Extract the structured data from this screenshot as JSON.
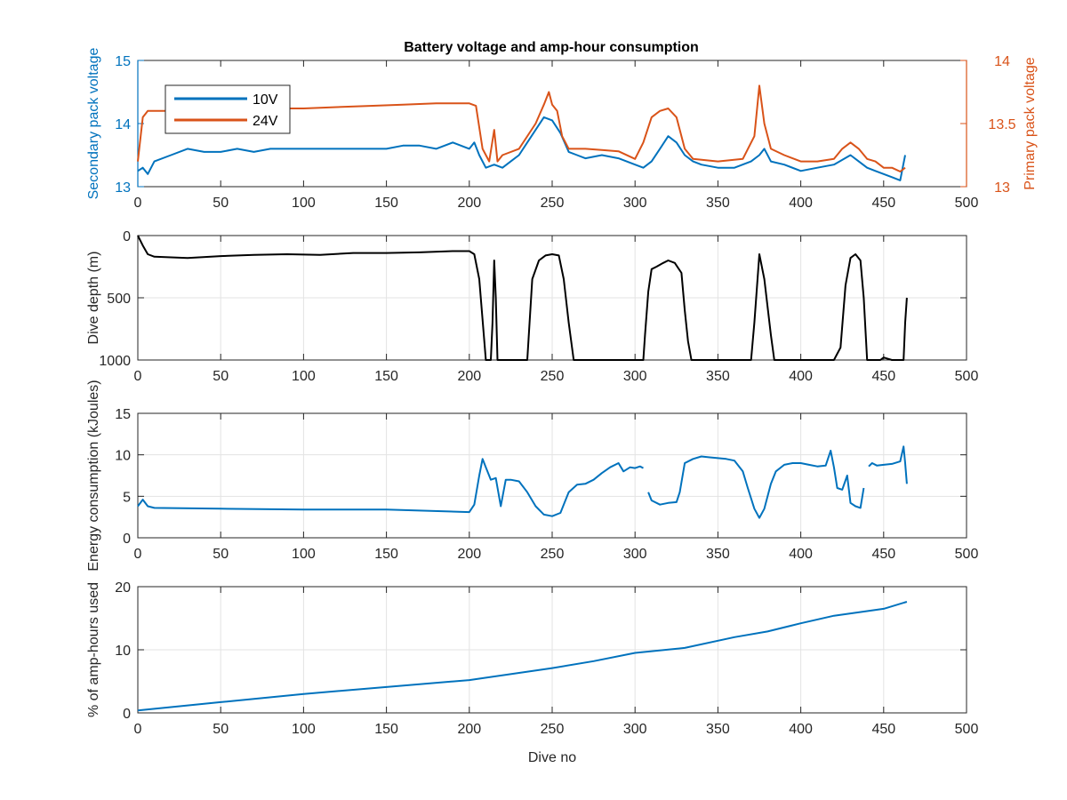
{
  "figure": {
    "title": "Battery voltage and amp-hour consumption"
  },
  "chart_data": [
    {
      "type": "line",
      "title": "Battery voltage and amp-hour consumption",
      "xlabel": "",
      "ylabel": "Secondary pack voltage",
      "y2label": "Primary pack voltage",
      "xlim": [
        0,
        500
      ],
      "ylim": [
        13,
        15
      ],
      "y2lim": [
        13,
        14
      ],
      "xticks": [
        "0",
        "50",
        "100",
        "150",
        "200",
        "250",
        "300",
        "350",
        "400",
        "450",
        "500"
      ],
      "yticks": [
        "13",
        "14",
        "15"
      ],
      "y2ticks": [
        "13",
        "13.5",
        "14"
      ],
      "grid": false,
      "legend": "top-left",
      "series": [
        {
          "name": "10V",
          "axis": "left",
          "color": "#0072BD",
          "x": [
            0,
            3,
            6,
            10,
            20,
            30,
            40,
            50,
            60,
            70,
            80,
            90,
            100,
            110,
            120,
            130,
            140,
            150,
            160,
            170,
            180,
            190,
            200,
            203,
            206,
            210,
            215,
            220,
            225,
            230,
            235,
            240,
            245,
            250,
            255,
            260,
            265,
            270,
            280,
            290,
            300,
            305,
            310,
            315,
            320,
            325,
            330,
            335,
            340,
            350,
            360,
            370,
            375,
            378,
            382,
            390,
            400,
            410,
            420,
            430,
            435,
            440,
            445,
            450,
            455,
            460,
            463
          ],
          "values": [
            13.25,
            13.3,
            13.2,
            13.4,
            13.5,
            13.6,
            13.55,
            13.55,
            13.6,
            13.55,
            13.6,
            13.6,
            13.6,
            13.6,
            13.6,
            13.6,
            13.6,
            13.6,
            13.65,
            13.65,
            13.6,
            13.7,
            13.6,
            13.7,
            13.5,
            13.3,
            13.35,
            13.3,
            13.4,
            13.5,
            13.7,
            13.9,
            14.1,
            14.05,
            13.85,
            13.55,
            13.5,
            13.45,
            13.5,
            13.45,
            13.35,
            13.3,
            13.4,
            13.6,
            13.8,
            13.7,
            13.5,
            13.4,
            13.35,
            13.3,
            13.3,
            13.4,
            13.5,
            13.6,
            13.4,
            13.35,
            13.25,
            13.3,
            13.35,
            13.5,
            13.4,
            13.3,
            13.25,
            13.2,
            13.15,
            13.1,
            13.5
          ]
        },
        {
          "name": "24V",
          "axis": "right",
          "color": "#D95319",
          "x": [
            0,
            3,
            6,
            10,
            20,
            40,
            60,
            80,
            100,
            120,
            140,
            160,
            180,
            200,
            204,
            208,
            212,
            215,
            217,
            220,
            230,
            240,
            245,
            248,
            250,
            253,
            256,
            260,
            270,
            280,
            290,
            300,
            305,
            310,
            315,
            320,
            325,
            330,
            335,
            350,
            365,
            372,
            375,
            378,
            382,
            390,
            400,
            410,
            420,
            425,
            430,
            435,
            440,
            445,
            450,
            455,
            460,
            463
          ],
          "values": [
            13.2,
            13.55,
            13.6,
            13.6,
            13.6,
            13.6,
            13.61,
            13.62,
            13.62,
            13.63,
            13.64,
            13.65,
            13.66,
            13.66,
            13.64,
            13.3,
            13.2,
            13.45,
            13.2,
            13.25,
            13.3,
            13.5,
            13.65,
            13.75,
            13.65,
            13.6,
            13.4,
            13.3,
            13.3,
            13.29,
            13.28,
            13.22,
            13.35,
            13.55,
            13.6,
            13.62,
            13.55,
            13.3,
            13.22,
            13.2,
            13.22,
            13.4,
            13.8,
            13.5,
            13.3,
            13.25,
            13.2,
            13.2,
            13.22,
            13.3,
            13.35,
            13.3,
            13.22,
            13.2,
            13.15,
            13.15,
            13.12,
            13.15
          ]
        }
      ]
    },
    {
      "type": "line",
      "title": "",
      "xlabel": "",
      "ylabel": "Dive depth (m)",
      "xlim": [
        0,
        500
      ],
      "ylim": [
        0,
        1000
      ],
      "y_reversed": true,
      "xticks": [
        "0",
        "50",
        "100",
        "150",
        "200",
        "250",
        "300",
        "350",
        "400",
        "450",
        "500"
      ],
      "yticks": [
        "0",
        "500",
        "1000"
      ],
      "grid": true,
      "series": [
        {
          "color": "#000000",
          "x": [
            0,
            3,
            6,
            10,
            30,
            50,
            70,
            90,
            110,
            130,
            150,
            170,
            190,
            200,
            203,
            206,
            210,
            212,
            213,
            214,
            215,
            216,
            217,
            218,
            220,
            225,
            235,
            238,
            242,
            246,
            250,
            254,
            257,
            260,
            263,
            270,
            280,
            290,
            300,
            305,
            306,
            308,
            310,
            313,
            317,
            320,
            324,
            328,
            330,
            332,
            334,
            340,
            360,
            370,
            372,
            375,
            378,
            382,
            384,
            390,
            400,
            410,
            420,
            424,
            427,
            430,
            433,
            436,
            438,
            440,
            445,
            448,
            450,
            455,
            460,
            462,
            463,
            464
          ],
          "values": [
            0,
            80,
            150,
            170,
            180,
            165,
            155,
            150,
            155,
            140,
            140,
            135,
            125,
            125,
            150,
            350,
            1000,
            1000,
            1000,
            700,
            200,
            500,
            1000,
            1000,
            1000,
            1000,
            1000,
            350,
            200,
            160,
            150,
            160,
            350,
            700,
            1000,
            1000,
            1000,
            1000,
            1000,
            1000,
            800,
            450,
            270,
            250,
            220,
            200,
            220,
            300,
            600,
            850,
            1000,
            1000,
            1000,
            1000,
            700,
            150,
            350,
            800,
            1000,
            1000,
            1000,
            1000,
            1000,
            900,
            400,
            180,
            150,
            200,
            500,
            1000,
            1000,
            1000,
            980,
            1000,
            1000,
            1000,
            700,
            500
          ]
        }
      ]
    },
    {
      "type": "line",
      "title": "",
      "xlabel": "",
      "ylabel": "Energy consumption (kJoules)",
      "xlim": [
        0,
        500
      ],
      "ylim": [
        0,
        15
      ],
      "xticks": [
        "0",
        "50",
        "100",
        "150",
        "200",
        "250",
        "300",
        "350",
        "400",
        "450",
        "500"
      ],
      "yticks": [
        "0",
        "5",
        "10",
        "15"
      ],
      "grid": true,
      "series": [
        {
          "color": "#0072BD",
          "x": [
            0,
            3,
            6,
            10,
            50,
            100,
            150,
            200,
            203,
            206,
            208,
            210,
            213,
            216,
            219,
            222,
            225,
            230,
            235,
            240,
            245,
            250,
            255,
            260,
            265,
            270,
            275,
            280,
            285,
            290,
            293,
            297,
            300,
            303,
            305
          ],
          "values": [
            3.8,
            4.6,
            3.8,
            3.6,
            3.5,
            3.4,
            3.4,
            3.1,
            4.0,
            7.5,
            9.5,
            8.5,
            7.0,
            7.2,
            3.8,
            7.0,
            7.0,
            6.8,
            5.5,
            3.8,
            2.8,
            2.6,
            3.0,
            5.5,
            6.4,
            6.5,
            7.0,
            7.8,
            8.5,
            9.0,
            8.0,
            8.5,
            8.4,
            8.6,
            8.4
          ]
        },
        {
          "color": "#0072BD",
          "x": [
            308,
            310,
            315,
            320,
            325,
            327,
            330,
            335,
            340,
            345,
            350,
            355,
            360,
            365,
            368,
            372,
            375,
            378,
            382,
            385,
            390,
            395,
            400,
            405,
            410,
            415,
            418,
            420,
            422,
            425,
            428,
            430,
            433,
            436,
            438
          ],
          "values": [
            5.5,
            4.5,
            4.0,
            4.2,
            4.3,
            5.5,
            9.0,
            9.5,
            9.8,
            9.7,
            9.6,
            9.5,
            9.3,
            8.0,
            6.0,
            3.5,
            2.4,
            3.5,
            6.5,
            8.0,
            8.8,
            9.0,
            9.0,
            8.8,
            8.6,
            8.7,
            10.5,
            8.5,
            6.0,
            5.8,
            7.5,
            4.2,
            3.8,
            3.6,
            6.0
          ]
        },
        {
          "color": "#0072BD",
          "x": [
            441,
            443,
            446,
            450,
            455,
            460,
            462,
            463,
            464
          ],
          "values": [
            8.6,
            9.0,
            8.7,
            8.8,
            8.9,
            9.2,
            11.0,
            9.0,
            6.5
          ]
        }
      ]
    },
    {
      "type": "line",
      "title": "",
      "xlabel": "Dive no",
      "ylabel": "% of amp-hours used",
      "xlim": [
        0,
        500
      ],
      "ylim": [
        0,
        20
      ],
      "xticks": [
        "0",
        "50",
        "100",
        "150",
        "200",
        "250",
        "300",
        "350",
        "400",
        "450",
        "500"
      ],
      "yticks": [
        "0",
        "10",
        "20"
      ],
      "grid": true,
      "series": [
        {
          "color": "#0072BD",
          "x": [
            0,
            50,
            100,
            150,
            200,
            250,
            275,
            300,
            330,
            360,
            380,
            400,
            420,
            450,
            464
          ],
          "values": [
            0.4,
            1.7,
            3.0,
            4.1,
            5.2,
            7.1,
            8.2,
            9.5,
            10.3,
            12.0,
            12.9,
            14.2,
            15.4,
            16.5,
            17.6
          ]
        }
      ]
    }
  ]
}
